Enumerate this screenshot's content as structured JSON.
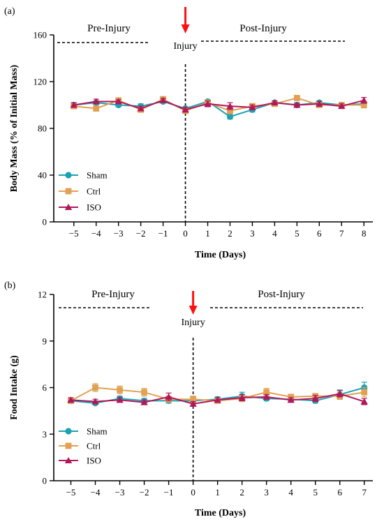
{
  "colors": {
    "Sham": "#1BA3B3",
    "Ctrl": "#E1A052",
    "ISO": "#B0185A",
    "arrow": "#FF1010"
  },
  "chart_data": [
    {
      "type": "line",
      "panel_label": "(a)",
      "xlabel": "Time (Days)",
      "ylabel": "Body Mass (% of Initial Mass)",
      "x": [
        -5,
        -4,
        -3,
        -2,
        -1,
        0,
        1,
        2,
        3,
        4,
        5,
        6,
        7,
        8
      ],
      "xlim": [
        -6,
        8.5
      ],
      "ylim": [
        0,
        160
      ],
      "yticks": [
        0,
        40,
        80,
        120,
        160
      ],
      "grid": false,
      "legend_position": "bottom-left",
      "annotations": {
        "pre": "Pre-Injury",
        "post": "Post-Injury",
        "injury": "Injury"
      },
      "series": [
        {
          "name": "Sham",
          "marker": "circle",
          "values": [
            100,
            102,
            100,
            99,
            103,
            97,
            103,
            90,
            96,
            102,
            100,
            102,
            100,
            101
          ],
          "errors": [
            2,
            1.5,
            1.5,
            2,
            1.5,
            1.5,
            1.5,
            2,
            2,
            1.5,
            2,
            1.5,
            1.5,
            2
          ]
        },
        {
          "name": "Ctrl",
          "marker": "square",
          "values": [
            99,
            97,
            104,
            96,
            105,
            95,
            102,
            95,
            99,
            101,
            106,
            100,
            100,
            100
          ],
          "errors": [
            2,
            2,
            2,
            2,
            2,
            2,
            2,
            2.5,
            2,
            2,
            2,
            2,
            2,
            2.5
          ]
        },
        {
          "name": "ISO",
          "marker": "triangle",
          "values": [
            100,
            103,
            103,
            97,
            104,
            96,
            101,
            99,
            98,
            102,
            100,
            101,
            99,
            104
          ],
          "errors": [
            2,
            2,
            1.5,
            2,
            1.5,
            2,
            2.5,
            3,
            2,
            1.5,
            1.5,
            2,
            2,
            2.5
          ]
        }
      ]
    },
    {
      "type": "line",
      "panel_label": "(b)",
      "xlabel": "Time (Days)",
      "ylabel": "Food Intake (g)",
      "x": [
        -5,
        -4,
        -3,
        -2,
        -1,
        0,
        1,
        2,
        3,
        4,
        5,
        6,
        7
      ],
      "xlim": [
        -6,
        7.5
      ],
      "ylim": [
        0,
        12
      ],
      "yticks": [
        0,
        3,
        6,
        9,
        12
      ],
      "grid": false,
      "legend_position": "bottom-left",
      "annotations": {
        "pre": "Pre-Injury",
        "post": "Post-Injury",
        "injury": "Injury"
      },
      "series": [
        {
          "name": "Sham",
          "marker": "circle",
          "values": [
            5.15,
            5.0,
            5.3,
            5.15,
            5.15,
            5.15,
            5.25,
            5.45,
            5.3,
            5.25,
            5.15,
            5.55,
            6.0
          ],
          "errors": [
            0.15,
            0.1,
            0.15,
            0.15,
            0.15,
            0.15,
            0.15,
            0.25,
            0.15,
            0.15,
            0.15,
            0.3,
            0.35
          ]
        },
        {
          "name": "Ctrl",
          "marker": "square",
          "values": [
            5.15,
            6.0,
            5.85,
            5.7,
            5.25,
            5.25,
            5.15,
            5.3,
            5.7,
            5.4,
            5.45,
            5.45,
            5.7
          ],
          "errors": [
            0.15,
            0.25,
            0.25,
            0.25,
            0.2,
            0.2,
            0.15,
            0.2,
            0.25,
            0.15,
            0.15,
            0.2,
            0.3
          ]
        },
        {
          "name": "ISO",
          "marker": "triangle",
          "values": [
            5.2,
            5.1,
            5.2,
            5.05,
            5.4,
            4.95,
            5.2,
            5.35,
            5.4,
            5.2,
            5.3,
            5.6,
            5.1
          ],
          "errors": [
            0.15,
            0.15,
            0.15,
            0.15,
            0.25,
            0.15,
            0.15,
            0.2,
            0.15,
            0.15,
            0.2,
            0.2,
            0.2
          ]
        }
      ]
    }
  ]
}
